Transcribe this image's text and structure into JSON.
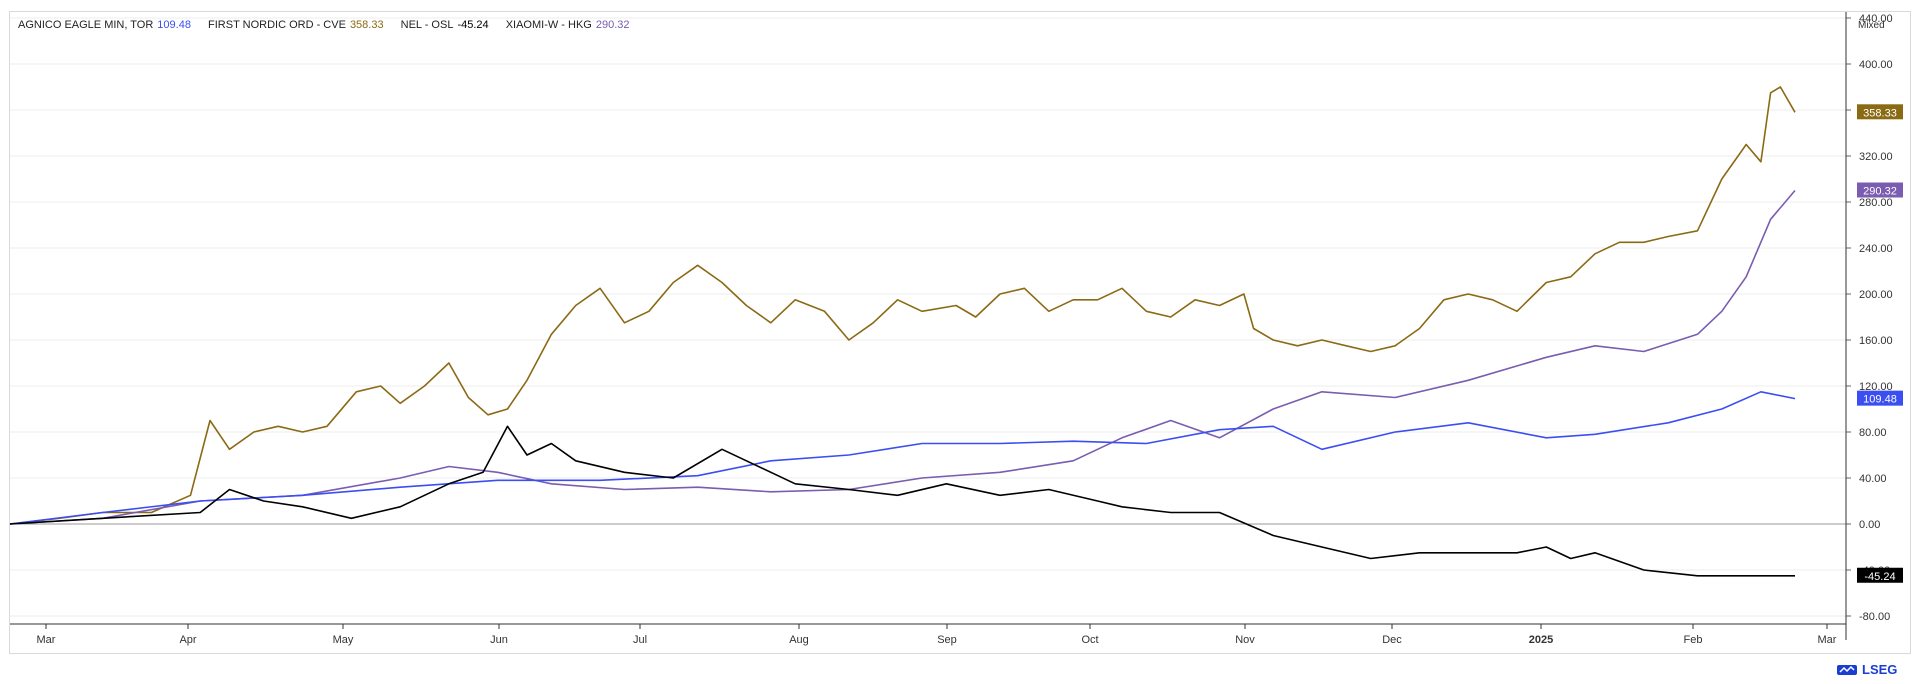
{
  "legend": [
    {
      "name": "AGNICO EAGLE MIN, TOR",
      "value": "109.48",
      "color": "#3b4ef2"
    },
    {
      "name": "FIRST NORDIC ORD - CVE",
      "value": "358.33",
      "color": "#8b6a14"
    },
    {
      "name": "NEL - OSL",
      "value": "-45.24",
      "color": "#000000"
    },
    {
      "name": "XIAOMI-W - HKG",
      "value": "290.32",
      "color": "#7a5cb0"
    }
  ],
  "scale_mode": "Mixed",
  "brand": "LSEG",
  "chart_data": {
    "type": "line",
    "ylim": [
      -100,
      470
    ],
    "y_ticks": [
      "440.00",
      "400.00",
      "360.00",
      "320.00",
      "280.00",
      "240.00",
      "200.00",
      "160.00",
      "120.00",
      "80.00",
      "40.00",
      "0.00",
      "-40.00",
      "-80.00"
    ],
    "x_ticks": [
      "Mar",
      "Apr",
      "May",
      "Jun",
      "Jul",
      "Aug",
      "Sep",
      "Oct",
      "Nov",
      "Dec",
      "2025",
      "Feb",
      "Mar"
    ],
    "series": [
      {
        "name": "FIRST NORDIC ORD - CVE",
        "color": "#8b6a14",
        "last_label": "358.33",
        "x": [
          "2024-02-20",
          "2024-03-01",
          "2024-03-10",
          "2024-03-20",
          "2024-03-28",
          "2024-04-01",
          "2024-04-05",
          "2024-04-10",
          "2024-04-15",
          "2024-04-20",
          "2024-04-25",
          "2024-05-01",
          "2024-05-06",
          "2024-05-10",
          "2024-05-15",
          "2024-05-20",
          "2024-05-24",
          "2024-05-28",
          "2024-06-01",
          "2024-06-05",
          "2024-06-10",
          "2024-06-15",
          "2024-06-20",
          "2024-06-25",
          "2024-06-30",
          "2024-07-05",
          "2024-07-10",
          "2024-07-15",
          "2024-07-20",
          "2024-07-25",
          "2024-07-30",
          "2024-08-05",
          "2024-08-10",
          "2024-08-15",
          "2024-08-20",
          "2024-08-25",
          "2024-09-01",
          "2024-09-05",
          "2024-09-10",
          "2024-09-15",
          "2024-09-20",
          "2024-09-25",
          "2024-09-30",
          "2024-10-05",
          "2024-10-10",
          "2024-10-15",
          "2024-10-20",
          "2024-10-25",
          "2024-10-30",
          "2024-11-01",
          "2024-11-05",
          "2024-11-10",
          "2024-11-15",
          "2024-11-20",
          "2024-11-25",
          "2024-11-30",
          "2024-12-05",
          "2024-12-10",
          "2024-12-15",
          "2024-12-20",
          "2024-12-25",
          "2024-12-31",
          "2025-01-05",
          "2025-01-10",
          "2025-01-15",
          "2025-01-20",
          "2025-01-25",
          "2025-01-31",
          "2025-02-05",
          "2025-02-10",
          "2025-02-13",
          "2025-02-15",
          "2025-02-17",
          "2025-02-20"
        ],
        "values": [
          0,
          5,
          10,
          10,
          25,
          90,
          65,
          80,
          85,
          80,
          85,
          115,
          120,
          105,
          120,
          140,
          110,
          95,
          100,
          125,
          165,
          190,
          205,
          175,
          185,
          210,
          225,
          210,
          190,
          175,
          195,
          185,
          160,
          175,
          195,
          185,
          190,
          180,
          200,
          205,
          185,
          195,
          195,
          205,
          185,
          180,
          195,
          190,
          200,
          170,
          160,
          155,
          160,
          155,
          150,
          155,
          170,
          195,
          200,
          195,
          185,
          210,
          215,
          235,
          245,
          245,
          250,
          255,
          300,
          330,
          315,
          375,
          380,
          358
        ]
      },
      {
        "name": "XIAOMI-W - HKG",
        "color": "#7a5cb0",
        "last_label": "290.32",
        "x": [
          "2024-02-20",
          "2024-03-10",
          "2024-03-30",
          "2024-04-20",
          "2024-05-10",
          "2024-05-20",
          "2024-05-30",
          "2024-06-10",
          "2024-06-25",
          "2024-07-10",
          "2024-07-25",
          "2024-08-10",
          "2024-08-25",
          "2024-09-10",
          "2024-09-25",
          "2024-10-05",
          "2024-10-15",
          "2024-10-25",
          "2024-11-05",
          "2024-11-15",
          "2024-11-30",
          "2024-12-15",
          "2024-12-31",
          "2025-01-10",
          "2025-01-20",
          "2025-01-31",
          "2025-02-05",
          "2025-02-10",
          "2025-02-15",
          "2025-02-20"
        ],
        "values": [
          0,
          5,
          20,
          25,
          40,
          50,
          45,
          35,
          30,
          32,
          28,
          30,
          40,
          45,
          55,
          75,
          90,
          75,
          100,
          115,
          110,
          125,
          145,
          155,
          150,
          165,
          185,
          215,
          265,
          290
        ]
      },
      {
        "name": "AGNICO EAGLE MIN, TOR",
        "color": "#3b4ef2",
        "last_label": "109.48",
        "x": [
          "2024-02-20",
          "2024-03-10",
          "2024-03-30",
          "2024-04-20",
          "2024-05-10",
          "2024-05-30",
          "2024-06-20",
          "2024-07-10",
          "2024-07-25",
          "2024-08-10",
          "2024-08-25",
          "2024-09-10",
          "2024-09-25",
          "2024-10-10",
          "2024-10-25",
          "2024-11-05",
          "2024-11-15",
          "2024-11-30",
          "2024-12-15",
          "2024-12-31",
          "2025-01-10",
          "2025-01-25",
          "2025-02-05",
          "2025-02-13",
          "2025-02-20"
        ],
        "values": [
          0,
          10,
          20,
          25,
          32,
          38,
          38,
          42,
          55,
          60,
          70,
          70,
          72,
          70,
          82,
          85,
          65,
          80,
          88,
          75,
          78,
          88,
          100,
          115,
          109
        ]
      },
      {
        "name": "NEL - OSL",
        "color": "#000000",
        "last_label": "-45.24",
        "x": [
          "2024-02-20",
          "2024-03-10",
          "2024-03-30",
          "2024-04-05",
          "2024-04-12",
          "2024-04-20",
          "2024-04-30",
          "2024-05-10",
          "2024-05-20",
          "2024-05-27",
          "2024-06-01",
          "2024-06-05",
          "2024-06-10",
          "2024-06-15",
          "2024-06-25",
          "2024-07-05",
          "2024-07-15",
          "2024-07-20",
          "2024-07-30",
          "2024-08-10",
          "2024-08-20",
          "2024-08-30",
          "2024-09-10",
          "2024-09-20",
          "2024-09-30",
          "2024-10-05",
          "2024-10-15",
          "2024-10-25",
          "2024-11-05",
          "2024-11-15",
          "2024-11-25",
          "2024-12-05",
          "2024-12-15",
          "2024-12-25",
          "2024-12-31",
          "2025-01-05",
          "2025-01-10",
          "2025-01-20",
          "2025-01-31",
          "2025-02-10",
          "2025-02-20"
        ],
        "values": [
          0,
          5,
          10,
          30,
          20,
          15,
          5,
          15,
          35,
          45,
          85,
          60,
          70,
          55,
          45,
          40,
          65,
          55,
          35,
          30,
          25,
          35,
          25,
          30,
          20,
          15,
          10,
          10,
          -10,
          -20,
          -30,
          -25,
          -25,
          -25,
          -20,
          -30,
          -25,
          -40,
          -45,
          -45,
          -45
        ]
      }
    ]
  }
}
